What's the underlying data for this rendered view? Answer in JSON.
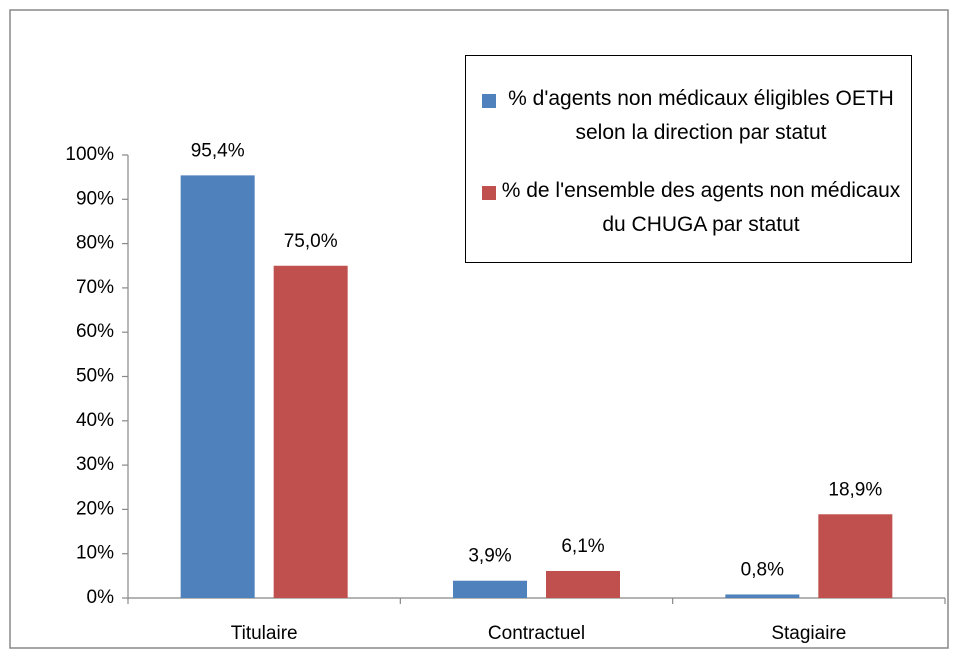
{
  "chart_data": {
    "type": "bar",
    "categories": [
      "Titulaire",
      "Contractuel",
      "Stagiaire"
    ],
    "series": [
      {
        "name": "% d'agents non médicaux éligibles OETH selon la direction par statut",
        "color": "#4f81bd",
        "values": [
          95.4,
          3.9,
          0.8
        ],
        "value_labels": [
          "95,4%",
          "3,9%",
          "0,8%"
        ]
      },
      {
        "name": "% de l'ensemble des agents non médicaux du CHUGA par statut",
        "color": "#c0504d",
        "values": [
          75.0,
          6.1,
          18.9
        ],
        "value_labels": [
          "75,0%",
          "6,1%",
          "18,9%"
        ]
      }
    ],
    "ylim": [
      0,
      100
    ],
    "yticks": [
      {
        "value": 0,
        "label": "0%"
      },
      {
        "value": 10,
        "label": "10%"
      },
      {
        "value": 20,
        "label": "20%"
      },
      {
        "value": 30,
        "label": "30%"
      },
      {
        "value": 40,
        "label": "40%"
      },
      {
        "value": 50,
        "label": "50%"
      },
      {
        "value": 60,
        "label": "60%"
      },
      {
        "value": 70,
        "label": "70%"
      },
      {
        "value": 80,
        "label": "80%"
      },
      {
        "value": 90,
        "label": "90%"
      },
      {
        "value": 100,
        "label": "100%"
      }
    ],
    "legend": "top-right"
  }
}
